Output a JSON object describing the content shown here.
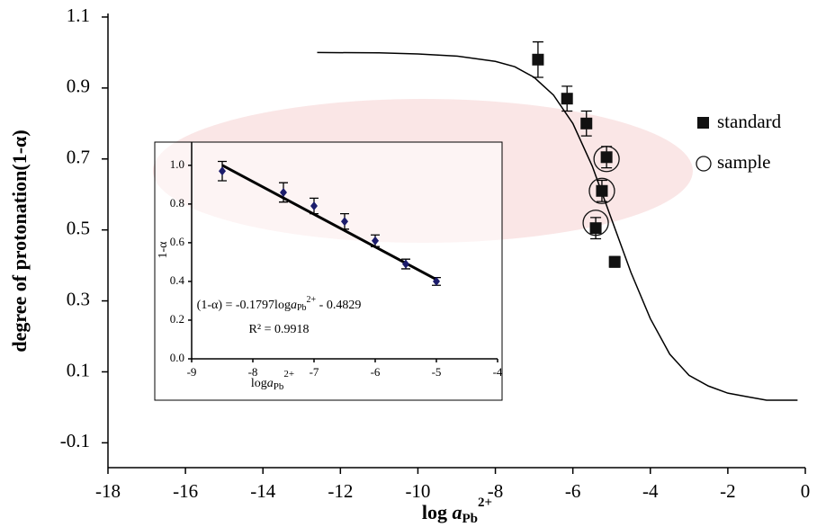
{
  "chart_data": [
    {
      "type": "scatter",
      "ylabel": "degree of protonation(1-α)",
      "xlabel": {
        "log": "log ",
        "a": "a",
        "sub": "Pb",
        "sup": "2+"
      },
      "xlim": [
        -18,
        0
      ],
      "ylim": [
        -0.17,
        1.11
      ],
      "xticks": [
        -18,
        -16,
        -14,
        -12,
        -10,
        -8,
        -6,
        -4,
        -2,
        0
      ],
      "yticks": [
        -0.1,
        0.1,
        0.3,
        0.5,
        0.7,
        0.9,
        1.1
      ],
      "series": [
        {
          "name": "standard",
          "marker": "square",
          "color": "#111111",
          "x": [
            -6.9,
            -6.15,
            -5.65,
            -5.13,
            -5.25,
            -5.41,
            -4.92
          ],
          "values": [
            0.98,
            0.87,
            0.8,
            0.705,
            0.61,
            0.505,
            0.41
          ],
          "errors": [
            0.05,
            0.035,
            0.035,
            0.03,
            0.03,
            0.03,
            0.015
          ]
        },
        {
          "name": "sample",
          "marker": "circle",
          "color": "#111111",
          "x": [
            -5.13,
            -5.25,
            -5.41
          ],
          "values": [
            0.7,
            0.61,
            0.52
          ]
        }
      ],
      "curve": {
        "color": "#000000",
        "x": [
          -12.6,
          -11,
          -10,
          -9,
          -8,
          -7.5,
          -7,
          -6.5,
          -6,
          -5.5,
          -5,
          -4.5,
          -4,
          -3.5,
          -3,
          -2.5,
          -2,
          -1.5,
          -1,
          -0.2
        ],
        "values": [
          1.0,
          0.999,
          0.996,
          0.99,
          0.975,
          0.96,
          0.93,
          0.88,
          0.8,
          0.68,
          0.53,
          0.38,
          0.25,
          0.15,
          0.09,
          0.06,
          0.04,
          0.03,
          0.02,
          0.02
        ]
      },
      "legend": "right"
    },
    {
      "type": "scatter",
      "ylabel": "1-α",
      "xlabel": {
        "log": "log",
        "a": "a",
        "sub": "Pb",
        "sup": "2+"
      },
      "equation": {
        "lhs": "(1-α) = -0.1797log",
        "a": "a",
        "sub": "Pb",
        "sup": "2+",
        "rhs": " - 0.4829"
      },
      "r2": "R² = 0.9918",
      "xlim": [
        -9,
        -4
      ],
      "ylim": [
        0,
        1.12
      ],
      "xticks": [
        -9,
        -8,
        -7,
        -6,
        -5,
        -4
      ],
      "yticks": [
        {
          "value": 0,
          "label": "0.0"
        },
        0.2,
        0.4,
        0.6,
        0.8,
        {
          "value": 1,
          "label": "1.0"
        }
      ],
      "series": [
        {
          "name": null,
          "marker": "diamond",
          "color": "#1c1c6b",
          "x": [
            -8.5,
            -7.5,
            -7,
            -6.5,
            -6,
            -5.5,
            -5
          ],
          "values": [
            0.97,
            0.86,
            0.79,
            0.71,
            0.61,
            0.49,
            0.4
          ],
          "errors": [
            0.05,
            0.05,
            0.04,
            0.04,
            0.03,
            0.025,
            0.02
          ]
        }
      ],
      "curve": {
        "color": "#000000",
        "x": [
          -8.5,
          -5
        ],
        "values": [
          1.0,
          0.41
        ]
      }
    }
  ]
}
